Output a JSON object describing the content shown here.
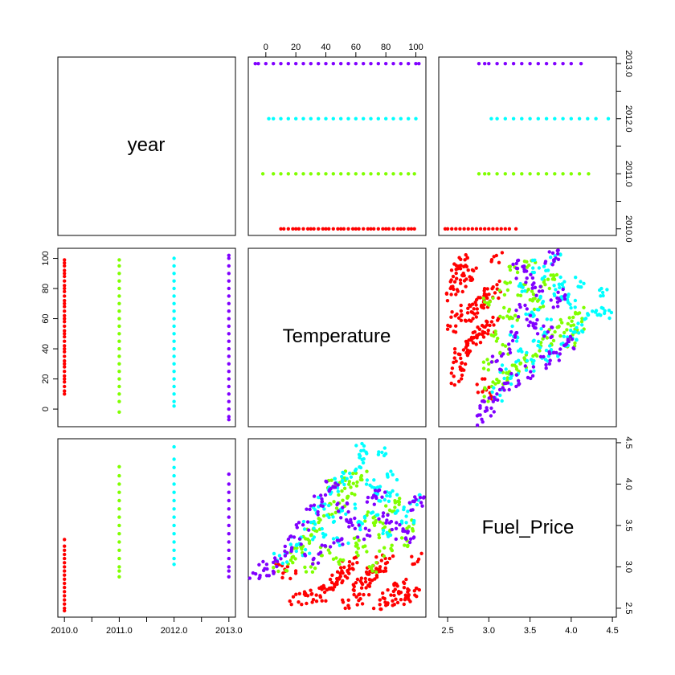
{
  "chart_data": {
    "type": "scatter",
    "subtype": "pairs-matrix",
    "variables": [
      "year",
      "Temperature",
      "Fuel_Price"
    ],
    "ranges": {
      "year": [
        2010,
        2013
      ],
      "Temperature": [
        -7.3,
        102.3
      ],
      "Fuel_Price": [
        2.472,
        4.468
      ]
    },
    "ticks": {
      "year": [
        2010.0,
        2010.5,
        2011.0,
        2011.5,
        2012.0,
        2012.5,
        2013.0
      ],
      "year_labels": [
        "2010.0",
        "",
        "2011.0",
        "",
        "2012.0",
        "",
        "2013.0"
      ],
      "Temperature": [
        0,
        20,
        40,
        60,
        80,
        100
      ],
      "Temperature_labels": [
        "0",
        "20",
        "40",
        "60",
        "80",
        "100"
      ],
      "Fuel_Price": [
        2.5,
        3.0,
        3.5,
        4.0,
        4.5
      ],
      "Fuel_Price_labels": [
        "2.5",
        "3.0",
        "3.5",
        "4.0",
        "4.5"
      ]
    },
    "grid": false,
    "legend": "none",
    "series": [
      {
        "year": 2010,
        "color": "#ff0000",
        "temperature_points": [
          10,
          12,
          15,
          18,
          20,
          22,
          25,
          28,
          30,
          32,
          35,
          38,
          40,
          42,
          45,
          48,
          50,
          52,
          55,
          58,
          60,
          62,
          65,
          68,
          70,
          72,
          75,
          78,
          80,
          82,
          85,
          88,
          90,
          92,
          95,
          97,
          99
        ],
        "fuel_points": [
          2.47,
          2.5,
          2.55,
          2.6,
          2.65,
          2.7,
          2.75,
          2.8,
          2.85,
          2.9,
          2.95,
          3.0,
          3.05,
          3.1,
          3.15,
          3.2,
          3.25,
          3.33
        ],
        "temp_fuel": [
          [
            30,
            2.6
          ],
          [
            35,
            2.65
          ],
          [
            40,
            2.7
          ],
          [
            42,
            2.75
          ],
          [
            45,
            2.8
          ],
          [
            48,
            2.85
          ],
          [
            50,
            2.9
          ],
          [
            52,
            2.95
          ],
          [
            55,
            3.0
          ],
          [
            58,
            3.05
          ],
          [
            60,
            2.75
          ],
          [
            62,
            2.7
          ],
          [
            65,
            2.8
          ],
          [
            68,
            2.85
          ],
          [
            70,
            2.9
          ],
          [
            72,
            2.95
          ],
          [
            75,
            3.0
          ],
          [
            78,
            3.05
          ],
          [
            80,
            3.1
          ],
          [
            82,
            2.65
          ],
          [
            85,
            2.7
          ],
          [
            88,
            2.75
          ],
          [
            90,
            2.8
          ],
          [
            92,
            2.6
          ],
          [
            95,
            2.65
          ],
          [
            98,
            2.7
          ],
          [
            100,
            3.1
          ],
          [
            20,
            2.6
          ],
          [
            25,
            2.65
          ],
          [
            15,
            2.9
          ],
          [
            10,
            3.0
          ],
          [
            55,
            2.55
          ],
          [
            65,
            2.6
          ],
          [
            75,
            2.55
          ],
          [
            85,
            2.6
          ]
        ]
      },
      {
        "year": 2011,
        "color": "#80ff00",
        "temperature_points": [
          -2,
          5,
          10,
          15,
          20,
          25,
          30,
          35,
          40,
          45,
          50,
          55,
          60,
          65,
          70,
          75,
          80,
          85,
          90,
          95,
          99
        ],
        "fuel_points": [
          2.88,
          2.95,
          3.0,
          3.1,
          3.2,
          3.3,
          3.4,
          3.5,
          3.6,
          3.7,
          3.8,
          3.9,
          4.0,
          4.1,
          4.21
        ],
        "temp_fuel": [
          [
            10,
            3.0
          ],
          [
            15,
            3.1
          ],
          [
            20,
            3.2
          ],
          [
            25,
            3.3
          ],
          [
            30,
            3.4
          ],
          [
            35,
            3.5
          ],
          [
            40,
            3.6
          ],
          [
            45,
            3.7
          ],
          [
            50,
            3.8
          ],
          [
            55,
            3.9
          ],
          [
            60,
            4.0
          ],
          [
            65,
            4.1
          ],
          [
            70,
            3.6
          ],
          [
            75,
            3.5
          ],
          [
            80,
            3.4
          ],
          [
            85,
            3.7
          ],
          [
            90,
            3.8
          ],
          [
            95,
            3.5
          ],
          [
            30,
            3.0
          ],
          [
            40,
            3.2
          ],
          [
            50,
            3.1
          ],
          [
            60,
            3.3
          ],
          [
            70,
            3.0
          ],
          [
            80,
            3.2
          ],
          [
            90,
            3.3
          ],
          [
            45,
            4.0
          ],
          [
            55,
            4.1
          ],
          [
            65,
            3.2
          ]
        ]
      },
      {
        "year": 2012,
        "color": "#00ffff",
        "temperature_points": [
          2,
          5,
          10,
          15,
          20,
          25,
          30,
          35,
          40,
          45,
          50,
          55,
          60,
          65,
          70,
          75,
          80,
          85,
          90,
          95,
          100
        ],
        "fuel_points": [
          3.03,
          3.1,
          3.2,
          3.3,
          3.4,
          3.5,
          3.6,
          3.7,
          3.8,
          3.9,
          4.0,
          4.1,
          4.2,
          4.3,
          4.45
        ],
        "temp_fuel": [
          [
            10,
            3.1
          ],
          [
            20,
            3.3
          ],
          [
            30,
            3.5
          ],
          [
            35,
            3.7
          ],
          [
            40,
            3.8
          ],
          [
            45,
            3.9
          ],
          [
            50,
            4.0
          ],
          [
            55,
            4.1
          ],
          [
            60,
            4.2
          ],
          [
            65,
            4.3
          ],
          [
            70,
            4.0
          ],
          [
            75,
            3.9
          ],
          [
            80,
            3.8
          ],
          [
            85,
            4.1
          ],
          [
            90,
            3.7
          ],
          [
            95,
            3.6
          ],
          [
            100,
            3.8
          ],
          [
            60,
            3.5
          ],
          [
            70,
            3.6
          ],
          [
            80,
            3.4
          ],
          [
            25,
            3.2
          ],
          [
            35,
            3.4
          ],
          [
            45,
            3.6
          ],
          [
            55,
            3.7
          ],
          [
            65,
            4.45
          ],
          [
            75,
            4.4
          ],
          [
            85,
            3.9
          ],
          [
            50,
            3.3
          ]
        ]
      },
      {
        "year": 2013,
        "color": "#8000ff",
        "temperature_points": [
          -7,
          -5,
          0,
          5,
          10,
          15,
          20,
          25,
          30,
          35,
          40,
          45,
          50,
          55,
          60,
          65,
          70,
          75,
          80,
          85,
          90,
          95,
          100,
          102
        ],
        "fuel_points": [
          2.88,
          2.95,
          3.0,
          3.1,
          3.2,
          3.3,
          3.4,
          3.5,
          3.6,
          3.7,
          3.8,
          3.9,
          4.0,
          4.12
        ],
        "temp_fuel": [
          [
            -7,
            2.9
          ],
          [
            0,
            3.0
          ],
          [
            5,
            2.95
          ],
          [
            10,
            3.1
          ],
          [
            15,
            3.2
          ],
          [
            20,
            3.3
          ],
          [
            25,
            3.5
          ],
          [
            30,
            3.7
          ],
          [
            35,
            3.8
          ],
          [
            40,
            3.9
          ],
          [
            45,
            4.0
          ],
          [
            50,
            3.7
          ],
          [
            55,
            3.6
          ],
          [
            60,
            3.5
          ],
          [
            65,
            3.4
          ],
          [
            70,
            3.8
          ],
          [
            75,
            3.9
          ],
          [
            80,
            3.6
          ],
          [
            85,
            3.5
          ],
          [
            90,
            3.4
          ],
          [
            95,
            3.3
          ],
          [
            100,
            3.75
          ],
          [
            102,
            3.8
          ],
          [
            30,
            3.1
          ],
          [
            40,
            3.2
          ],
          [
            50,
            3.3
          ]
        ]
      }
    ]
  }
}
